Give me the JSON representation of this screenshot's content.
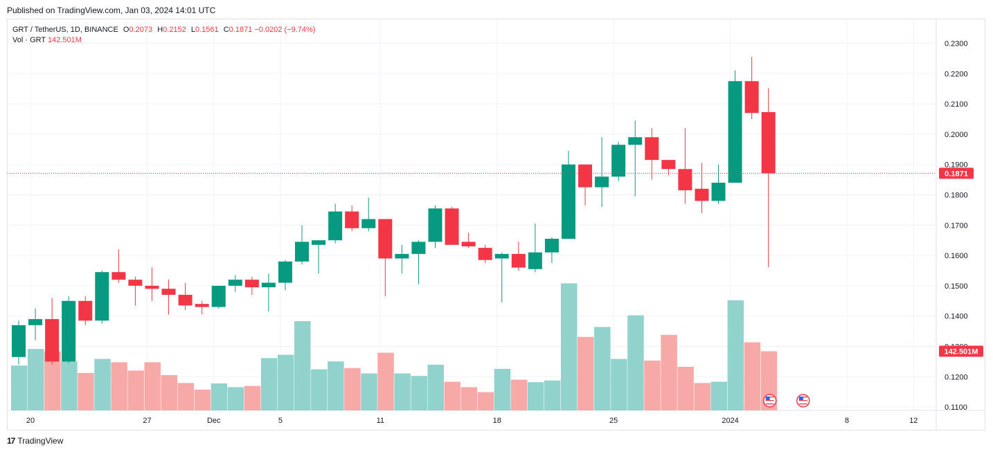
{
  "header": {
    "published": "Published on TradingView.com, Jan 03, 2024 14:01 UTC"
  },
  "legend": {
    "symbol": "GRT / TetherUS, 1D, BINANCE",
    "open_label": "O",
    "open": "0.2073",
    "high_label": "H",
    "high": "0.2152",
    "low_label": "L",
    "low": "0.1561",
    "close_label": "C",
    "close": "0.1871",
    "change": "−0.0202 (−9.74%)",
    "vol_label": "Vol · GRT",
    "vol_value": "142.501M"
  },
  "footer": {
    "brand": "TradingView",
    "logo_text": "17"
  },
  "colors": {
    "up": "#089981",
    "down": "#f23645",
    "vol_up": "#92d2cc",
    "vol_down": "#f7a9a7",
    "grid": "#f0f3fa"
  },
  "chart_data": {
    "type": "candlestick",
    "price_axis": {
      "ticks": [
        "0.2300",
        "0.2200",
        "0.2100",
        "0.2000",
        "0.1900",
        "0.1800",
        "0.1700",
        "0.1600",
        "0.1500",
        "0.1400",
        "0.1300",
        "0.1200",
        "0.1100"
      ],
      "range": [
        0.1075,
        0.2375
      ]
    },
    "last_price_label": "0.1871",
    "last_volume_label": "142.501M",
    "time_axis": [
      {
        "label": "20",
        "index": 1
      },
      {
        "label": "27",
        "index": 8
      },
      {
        "label": "Dec",
        "index": 12
      },
      {
        "label": "5",
        "index": 16
      },
      {
        "label": "11",
        "index": 22
      },
      {
        "label": "18",
        "index": 29
      },
      {
        "label": "25",
        "index": 36
      },
      {
        "label": "2024",
        "index": 43
      },
      {
        "label": "8",
        "index": 50
      },
      {
        "label": "12",
        "index": 54
      }
    ],
    "candles": [
      {
        "o": 0.1265,
        "h": 0.1385,
        "l": 0.124,
        "c": 0.137,
        "v": 108
      },
      {
        "o": 0.137,
        "h": 0.1425,
        "l": 0.132,
        "c": 0.139,
        "v": 148
      },
      {
        "o": 0.139,
        "h": 0.146,
        "l": 0.124,
        "c": 0.125,
        "v": 142
      },
      {
        "o": 0.125,
        "h": 0.1465,
        "l": 0.1245,
        "c": 0.145,
        "v": 118
      },
      {
        "o": 0.145,
        "h": 0.1465,
        "l": 0.137,
        "c": 0.1385,
        "v": 90
      },
      {
        "o": 0.1385,
        "h": 0.155,
        "l": 0.1375,
        "c": 0.1545,
        "v": 124
      },
      {
        "o": 0.1545,
        "h": 0.162,
        "l": 0.151,
        "c": 0.152,
        "v": 116
      },
      {
        "o": 0.152,
        "h": 0.153,
        "l": 0.1435,
        "c": 0.15,
        "v": 96
      },
      {
        "o": 0.15,
        "h": 0.156,
        "l": 0.145,
        "c": 0.149,
        "v": 116
      },
      {
        "o": 0.149,
        "h": 0.152,
        "l": 0.1405,
        "c": 0.147,
        "v": 85
      },
      {
        "o": 0.147,
        "h": 0.151,
        "l": 0.142,
        "c": 0.1435,
        "v": 66
      },
      {
        "o": 0.144,
        "h": 0.145,
        "l": 0.1405,
        "c": 0.143,
        "v": 50
      },
      {
        "o": 0.143,
        "h": 0.15,
        "l": 0.1425,
        "c": 0.15,
        "v": 65
      },
      {
        "o": 0.15,
        "h": 0.1535,
        "l": 0.148,
        "c": 0.152,
        "v": 56
      },
      {
        "o": 0.152,
        "h": 0.153,
        "l": 0.147,
        "c": 0.1495,
        "v": 59
      },
      {
        "o": 0.1495,
        "h": 0.154,
        "l": 0.1415,
        "c": 0.151,
        "v": 126
      },
      {
        "o": 0.151,
        "h": 0.1585,
        "l": 0.1485,
        "c": 0.158,
        "v": 134
      },
      {
        "o": 0.158,
        "h": 0.17,
        "l": 0.157,
        "c": 0.1645,
        "v": 215
      },
      {
        "o": 0.1635,
        "h": 0.165,
        "l": 0.154,
        "c": 0.165,
        "v": 99
      },
      {
        "o": 0.165,
        "h": 0.177,
        "l": 0.164,
        "c": 0.1745,
        "v": 118
      },
      {
        "o": 0.1745,
        "h": 0.1765,
        "l": 0.168,
        "c": 0.169,
        "v": 102
      },
      {
        "o": 0.169,
        "h": 0.179,
        "l": 0.168,
        "c": 0.172,
        "v": 89
      },
      {
        "o": 0.172,
        "h": 0.172,
        "l": 0.1465,
        "c": 0.159,
        "v": 139
      },
      {
        "o": 0.159,
        "h": 0.1635,
        "l": 0.154,
        "c": 0.1605,
        "v": 89
      },
      {
        "o": 0.1605,
        "h": 0.165,
        "l": 0.1505,
        "c": 0.1645,
        "v": 83
      },
      {
        "o": 0.1645,
        "h": 0.1765,
        "l": 0.1625,
        "c": 0.1755,
        "v": 110
      },
      {
        "o": 0.1755,
        "h": 0.176,
        "l": 0.1635,
        "c": 0.1635,
        "v": 69
      },
      {
        "o": 0.1645,
        "h": 0.1675,
        "l": 0.1625,
        "c": 0.163,
        "v": 56
      },
      {
        "o": 0.1625,
        "h": 0.1635,
        "l": 0.1575,
        "c": 0.1585,
        "v": 44
      },
      {
        "o": 0.159,
        "h": 0.161,
        "l": 0.1445,
        "c": 0.1605,
        "v": 100
      },
      {
        "o": 0.1605,
        "h": 0.1645,
        "l": 0.155,
        "c": 0.156,
        "v": 74
      },
      {
        "o": 0.1555,
        "h": 0.1705,
        "l": 0.1545,
        "c": 0.161,
        "v": 68
      },
      {
        "o": 0.161,
        "h": 0.166,
        "l": 0.1575,
        "c": 0.1655,
        "v": 72
      },
      {
        "o": 0.1655,
        "h": 0.1945,
        "l": 0.1655,
        "c": 0.19,
        "v": 306
      },
      {
        "o": 0.19,
        "h": 0.19,
        "l": 0.1765,
        "c": 0.1825,
        "v": 177
      },
      {
        "o": 0.1825,
        "h": 0.199,
        "l": 0.176,
        "c": 0.186,
        "v": 201
      },
      {
        "o": 0.186,
        "h": 0.1975,
        "l": 0.1845,
        "c": 0.1965,
        "v": 124
      },
      {
        "o": 0.1965,
        "h": 0.2045,
        "l": 0.1795,
        "c": 0.199,
        "v": 229
      },
      {
        "o": 0.199,
        "h": 0.202,
        "l": 0.185,
        "c": 0.1915,
        "v": 120
      },
      {
        "o": 0.1915,
        "h": 0.1915,
        "l": 0.1865,
        "c": 0.1885,
        "v": 182
      },
      {
        "o": 0.1885,
        "h": 0.202,
        "l": 0.177,
        "c": 0.1815,
        "v": 105
      },
      {
        "o": 0.182,
        "h": 0.1905,
        "l": 0.174,
        "c": 0.178,
        "v": 66
      },
      {
        "o": 0.178,
        "h": 0.19,
        "l": 0.177,
        "c": 0.184,
        "v": 69
      },
      {
        "o": 0.184,
        "h": 0.221,
        "l": 0.184,
        "c": 0.2175,
        "v": 265
      },
      {
        "o": 0.2175,
        "h": 0.2255,
        "l": 0.205,
        "c": 0.207,
        "v": 164
      },
      {
        "o": 0.2073,
        "h": 0.2152,
        "l": 0.1561,
        "c": 0.1871,
        "v": 142.501
      }
    ],
    "events": [
      {
        "index": 45,
        "name": "us-flag-icon"
      },
      {
        "index": 47,
        "name": "us-flag-icon"
      }
    ]
  }
}
